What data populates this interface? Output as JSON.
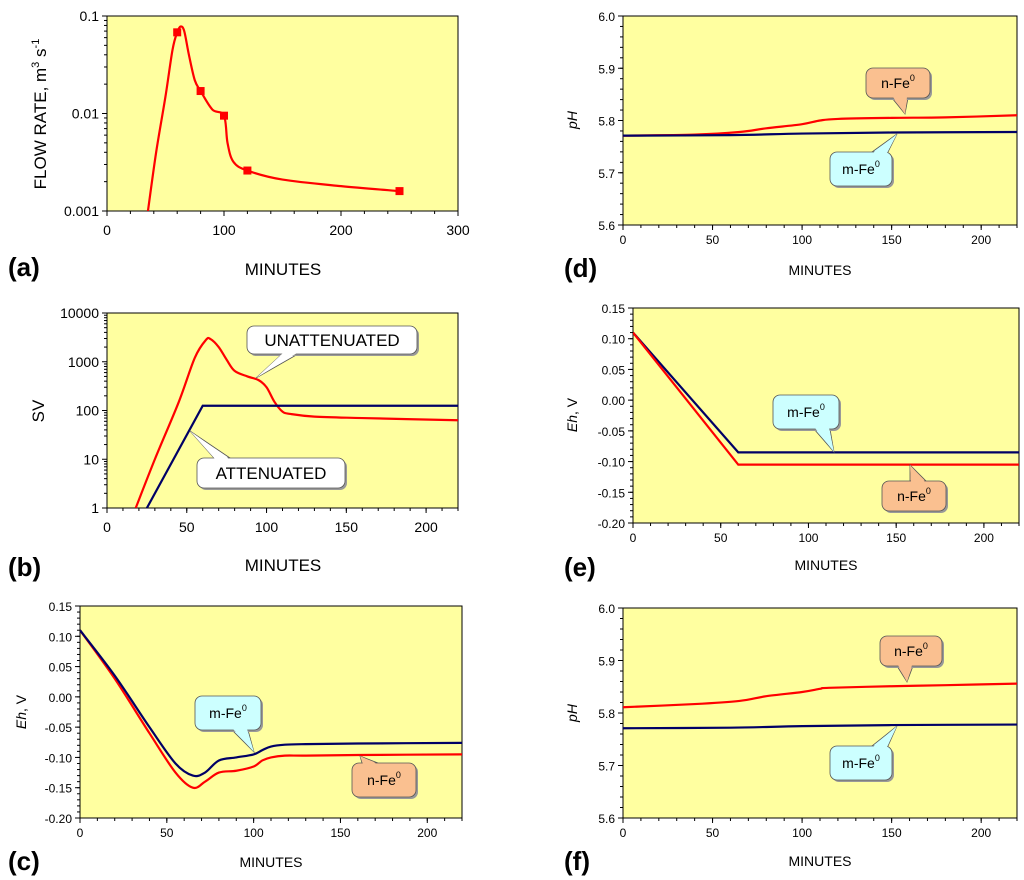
{
  "chart_data": [
    {
      "id": "a",
      "panel_label": "(a)",
      "type": "line",
      "yscale": "log",
      "xlabel": "MINUTES",
      "ylabel_main": "FLOW RATE, m",
      "ylabel_sup1": "3",
      "ylabel_mid": " s",
      "ylabel_sup2": "-1",
      "xlim": [
        0,
        300
      ],
      "ylim": [
        0.001,
        0.1
      ],
      "xticks": [
        0,
        100,
        200,
        300
      ],
      "yticks": [
        0.001,
        0.01,
        0.1
      ],
      "xtick_labels": [
        "0",
        "100",
        "200",
        "300"
      ],
      "ytick_labels": [
        "0.001",
        "0.01",
        "0.1"
      ],
      "series": [
        {
          "name": "flow",
          "color": "#ff0000",
          "x": [
            35,
            42,
            50,
            56,
            60,
            63,
            66,
            70,
            75,
            80,
            90,
            100,
            103,
            108,
            120,
            150,
            200,
            250
          ],
          "y": [
            0.001,
            0.004,
            0.015,
            0.045,
            0.068,
            0.078,
            0.07,
            0.04,
            0.022,
            0.017,
            0.011,
            0.0095,
            0.005,
            0.0032,
            0.0026,
            0.0021,
            0.0018,
            0.0016
          ],
          "markers_x": [
            60,
            80,
            100,
            120,
            250
          ],
          "markers_y": [
            0.068,
            0.017,
            0.0095,
            0.0026,
            0.0016
          ]
        }
      ]
    },
    {
      "id": "b",
      "panel_label": "(b)",
      "type": "line",
      "yscale": "log",
      "xlabel": "MINUTES",
      "ylabel": "SV",
      "xlim": [
        0,
        220
      ],
      "ylim": [
        1,
        10000
      ],
      "xticks": [
        0,
        50,
        100,
        150,
        200
      ],
      "yticks": [
        1,
        10,
        100,
        1000,
        10000
      ],
      "xtick_labels": [
        "0",
        "50",
        "100",
        "150",
        "200"
      ],
      "ytick_labels": [
        "1",
        "10",
        "100",
        "1000",
        "10000"
      ],
      "series": [
        {
          "name": "UNATTENUATED",
          "color": "#ff0000",
          "x": [
            18,
            30,
            45,
            55,
            62,
            65,
            70,
            75,
            80,
            88,
            95,
            100,
            105,
            110,
            115,
            130,
            160,
            220
          ],
          "y": [
            1,
            10,
            150,
            1200,
            2800,
            2900,
            2000,
            1100,
            650,
            500,
            420,
            300,
            150,
            95,
            85,
            75,
            70,
            63
          ]
        },
        {
          "name": "ATTENUATED",
          "color": "#000066",
          "x": [
            25,
            60,
            220
          ],
          "y": [
            1,
            125,
            125
          ]
        }
      ],
      "annotations": [
        "UNATTENUATED",
        "ATTENUATED"
      ]
    },
    {
      "id": "c",
      "panel_label": "(c)",
      "type": "line",
      "xlabel": "MINUTES",
      "ylabel": "Eh, V",
      "xlim": [
        0,
        220
      ],
      "ylim": [
        -0.2,
        0.15
      ],
      "xticks": [
        0,
        50,
        100,
        150,
        200
      ],
      "yticks": [
        -0.2,
        -0.15,
        -0.1,
        -0.05,
        0.0,
        0.05,
        0.1,
        0.15
      ],
      "xtick_labels": [
        "0",
        "50",
        "100",
        "150",
        "200"
      ],
      "ytick_labels": [
        "-0.20",
        "-0.15",
        "-0.10",
        "-0.05",
        "0.00",
        "0.05",
        "0.10",
        "0.15"
      ],
      "series": [
        {
          "name": "n-Fe0",
          "color": "#ff0000",
          "x": [
            0,
            20,
            40,
            55,
            65,
            72,
            80,
            90,
            100,
            105,
            110,
            118,
            130,
            160,
            220
          ],
          "y": [
            0.11,
            0.03,
            -0.06,
            -0.125,
            -0.15,
            -0.14,
            -0.125,
            -0.122,
            -0.115,
            -0.105,
            -0.1,
            -0.097,
            -0.097,
            -0.096,
            -0.095
          ],
          "annotation": "n-Fe",
          "annotation_sup": "0"
        },
        {
          "name": "m-Fe0",
          "color": "#000066",
          "x": [
            0,
            20,
            40,
            55,
            65,
            72,
            80,
            90,
            100,
            105,
            110,
            118,
            130,
            160,
            220
          ],
          "y": [
            0.11,
            0.035,
            -0.05,
            -0.11,
            -0.13,
            -0.125,
            -0.105,
            -0.1,
            -0.095,
            -0.088,
            -0.082,
            -0.079,
            -0.078,
            -0.077,
            -0.076
          ],
          "annotation": "m-Fe",
          "annotation_sup": "0"
        }
      ]
    },
    {
      "id": "d",
      "panel_label": "(d)",
      "type": "line",
      "xlabel": "MINUTES",
      "ylabel": "pH",
      "xlim": [
        0,
        220
      ],
      "ylim": [
        5.6,
        6.0
      ],
      "xticks": [
        0,
        50,
        100,
        150,
        200
      ],
      "yticks": [
        5.6,
        5.7,
        5.8,
        5.9,
        6.0
      ],
      "xtick_labels": [
        "0",
        "50",
        "100",
        "150",
        "200"
      ],
      "ytick_labels": [
        "5.6",
        "5.7",
        "5.8",
        "5.9",
        "6.0"
      ],
      "series": [
        {
          "name": "n-Fe0",
          "color": "#ff0000",
          "x": [
            0,
            40,
            65,
            80,
            100,
            110,
            120,
            150,
            180,
            220
          ],
          "y": [
            5.771,
            5.773,
            5.778,
            5.785,
            5.793,
            5.8,
            5.803,
            5.805,
            5.806,
            5.81
          ],
          "annotation": "n-Fe",
          "annotation_sup": "0"
        },
        {
          "name": "m-Fe0",
          "color": "#000066",
          "x": [
            0,
            60,
            100,
            150,
            220
          ],
          "y": [
            5.771,
            5.772,
            5.775,
            5.777,
            5.778
          ],
          "annotation": "m-Fe",
          "annotation_sup": "0"
        }
      ]
    },
    {
      "id": "e",
      "panel_label": "(e)",
      "type": "line",
      "xlabel": "MINUTES",
      "ylabel": "Eh, V",
      "xlim": [
        0,
        220
      ],
      "ylim": [
        -0.2,
        0.15
      ],
      "xticks": [
        0,
        50,
        100,
        150,
        200
      ],
      "yticks": [
        -0.2,
        -0.15,
        -0.1,
        -0.05,
        0.0,
        0.05,
        0.1,
        0.15
      ],
      "xtick_labels": [
        "0",
        "50",
        "100",
        "150",
        "200"
      ],
      "ytick_labels": [
        "-0.20",
        "-0.15",
        "-0.10",
        "-0.05",
        "0.00",
        "0.05",
        "0.10",
        "0.15"
      ],
      "series": [
        {
          "name": "m-Fe0",
          "color": "#000066",
          "x": [
            0,
            60,
            220
          ],
          "y": [
            0.11,
            -0.085,
            -0.085
          ],
          "annotation": "m-Fe",
          "annotation_sup": "0"
        },
        {
          "name": "n-Fe0",
          "color": "#ff0000",
          "x": [
            0,
            60,
            220
          ],
          "y": [
            0.11,
            -0.105,
            -0.105
          ],
          "annotation": "n-Fe",
          "annotation_sup": "0"
        }
      ]
    },
    {
      "id": "f",
      "panel_label": "(f)",
      "type": "line",
      "xlabel": "MINUTES",
      "ylabel": "pH",
      "xlim": [
        0,
        220
      ],
      "ylim": [
        5.6,
        6.0
      ],
      "xticks": [
        0,
        50,
        100,
        150,
        200
      ],
      "yticks": [
        5.6,
        5.7,
        5.8,
        5.9,
        6.0
      ],
      "xtick_labels": [
        "0",
        "50",
        "100",
        "150",
        "200"
      ],
      "ytick_labels": [
        "5.6",
        "5.7",
        "5.8",
        "5.9",
        "6.0"
      ],
      "series": [
        {
          "name": "n-Fe0",
          "color": "#ff0000",
          "x": [
            0,
            40,
            65,
            80,
            100,
            110,
            115,
            150,
            180,
            220
          ],
          "y": [
            5.811,
            5.817,
            5.823,
            5.832,
            5.84,
            5.846,
            5.848,
            5.851,
            5.853,
            5.856
          ],
          "annotation": "n-Fe",
          "annotation_sup": "0"
        },
        {
          "name": "m-Fe0",
          "color": "#000066",
          "x": [
            0,
            60,
            100,
            150,
            220
          ],
          "y": [
            5.771,
            5.772,
            5.775,
            5.777,
            5.778
          ],
          "annotation": "m-Fe",
          "annotation_sup": "0"
        }
      ]
    }
  ]
}
